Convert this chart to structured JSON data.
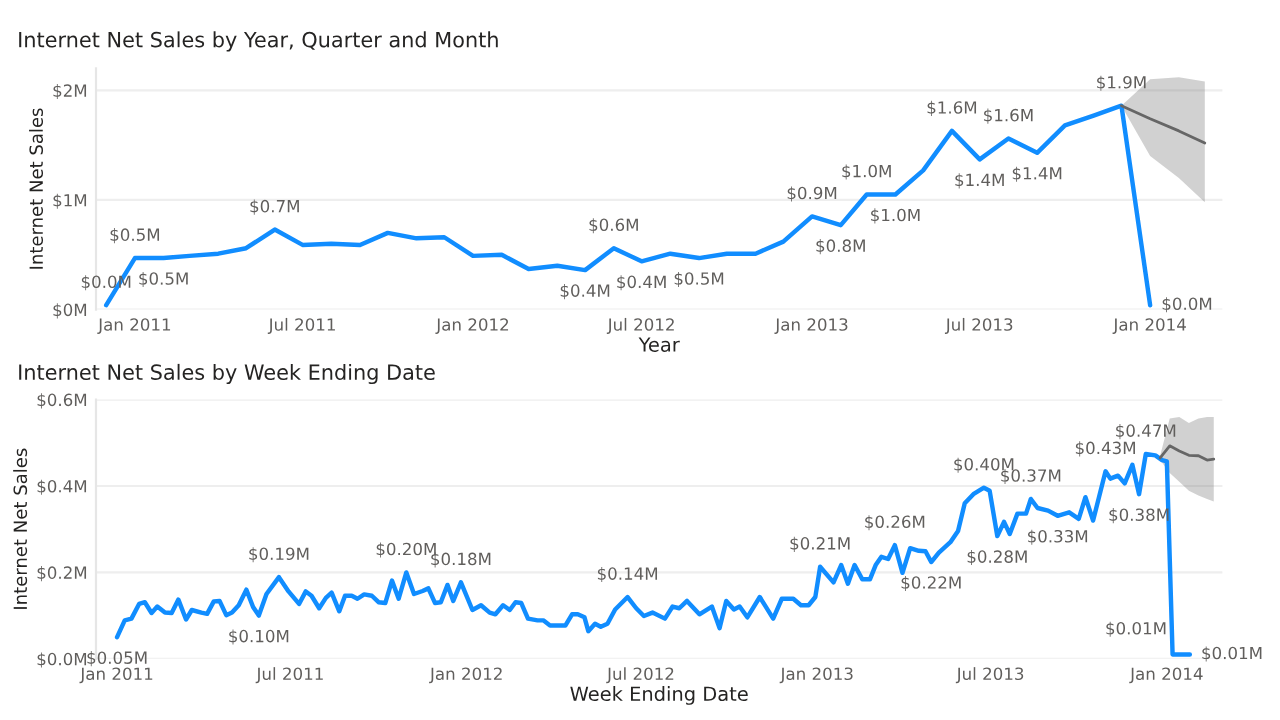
{
  "chart_data": [
    {
      "type": "line",
      "title": "Internet Net Sales by Year, Quarter and Month",
      "xlabel": "Year",
      "ylabel": "Internet Net Sales",
      "xlim": [
        "2010-11-20",
        "2014-03-20"
      ],
      "ylim": [
        0,
        2.2
      ],
      "xticks": [
        {
          "value": "2011-01-01",
          "label": "Jan 2011"
        },
        {
          "value": "2011-07-01",
          "label": "Jul 2011"
        },
        {
          "value": "2012-01-01",
          "label": "Jan 2012"
        },
        {
          "value": "2012-07-01",
          "label": "Jul 2012"
        },
        {
          "value": "2013-01-01",
          "label": "Jan 2013"
        },
        {
          "value": "2013-07-01",
          "label": "Jul 2013"
        },
        {
          "value": "2014-01-01",
          "label": "Jan 2014"
        }
      ],
      "yticks": [
        {
          "value": 0,
          "label": "$0M"
        },
        {
          "value": 1,
          "label": "$1M"
        },
        {
          "value": 2,
          "label": "$2M"
        }
      ],
      "grid": "y",
      "series": [
        {
          "color": "#118dff",
          "x": [
            "2010-12",
            "2011-01",
            "2011-02",
            "2011-03",
            "2011-04",
            "2011-05",
            "2011-06",
            "2011-07",
            "2011-08",
            "2011-09",
            "2011-10",
            "2011-11",
            "2011-12",
            "2012-01",
            "2012-02",
            "2012-03",
            "2012-04",
            "2012-05",
            "2012-06",
            "2012-07",
            "2012-08",
            "2012-09",
            "2012-10",
            "2012-11",
            "2012-12",
            "2013-01",
            "2013-02",
            "2013-03",
            "2013-04",
            "2013-05",
            "2013-06",
            "2013-07",
            "2013-08",
            "2013-09",
            "2013-10",
            "2013-11",
            "2013-12",
            "2014-01"
          ],
          "values": [
            0.04,
            0.47,
            0.47,
            0.49,
            0.51,
            0.56,
            0.73,
            0.59,
            0.6,
            0.59,
            0.7,
            0.65,
            0.66,
            0.49,
            0.5,
            0.37,
            0.4,
            0.36,
            0.56,
            0.44,
            0.51,
            0.47,
            0.51,
            0.51,
            0.62,
            0.85,
            0.77,
            1.05,
            1.05,
            1.27,
            1.63,
            1.37,
            1.56,
            1.43,
            1.68,
            1.77,
            1.86,
            0.04
          ],
          "value_labels": [
            "$0.0M",
            "$0.5M",
            "$0.5M",
            null,
            null,
            null,
            "$0.7M",
            null,
            null,
            null,
            null,
            null,
            null,
            null,
            null,
            null,
            null,
            "$0.4M",
            "$0.6M",
            "$0.4M",
            null,
            "$0.5M",
            null,
            null,
            null,
            "$0.9M",
            "$0.8M",
            "$1.0M",
            "$1.0M",
            null,
            "$1.6M",
            "$1.4M",
            "$1.6M",
            "$1.4M",
            null,
            null,
            "$1.9M",
            "$0.0M"
          ]
        },
        {
          "color": "#666666",
          "x": [
            "2013-12",
            "2014-01",
            "2014-02",
            "2014-03"
          ],
          "values": [
            1.86,
            1.74,
            1.63,
            1.52
          ],
          "lower": [
            1.86,
            1.4,
            1.2,
            0.98
          ],
          "upper": [
            1.86,
            2.1,
            2.12,
            2.08
          ]
        }
      ]
    },
    {
      "type": "line",
      "title": "Internet Net Sales by Week Ending Date",
      "xlabel": "Week Ending Date",
      "ylabel": "Internet Net Sales",
      "xlim": [
        "2010-12-10",
        "2014-02-28"
      ],
      "ylim": [
        0,
        0.6
      ],
      "xticks": [
        {
          "value": "2011-01-01",
          "label": "Jan 2011"
        },
        {
          "value": "2011-07-01",
          "label": "Jul 2011"
        },
        {
          "value": "2012-01-01",
          "label": "Jan 2012"
        },
        {
          "value": "2012-07-01",
          "label": "Jul 2012"
        },
        {
          "value": "2013-01-01",
          "label": "Jan 2013"
        },
        {
          "value": "2013-07-01",
          "label": "Jul 2013"
        },
        {
          "value": "2014-01-01",
          "label": "Jan 2014"
        }
      ],
      "yticks": [
        {
          "value": 0,
          "label": "$0.0M"
        },
        {
          "value": 0.2,
          "label": "$0.2M"
        },
        {
          "value": 0.4,
          "label": "$0.4M"
        },
        {
          "value": 0.6,
          "label": "$0.6M"
        }
      ],
      "grid": "y",
      "series": [
        {
          "color": "#118dff",
          "x": [
            "2011-01-01",
            "2011-01-09",
            "2011-01-16",
            "2011-01-24",
            "2011-01-30",
            "2011-02-06",
            "2011-02-12",
            "2011-02-20",
            "2011-02-27",
            "2011-03-06",
            "2011-03-14",
            "2011-03-20",
            "2011-03-30",
            "2011-04-05",
            "2011-04-12",
            "2011-04-18",
            "2011-04-25",
            "2011-05-01",
            "2011-05-08",
            "2011-05-16",
            "2011-05-23",
            "2011-05-29",
            "2011-06-06",
            "2011-06-19",
            "2011-06-29",
            "2011-07-10",
            "2011-07-17",
            "2011-07-23",
            "2011-07-31",
            "2011-08-07",
            "2011-08-13",
            "2011-08-21",
            "2011-08-27",
            "2011-09-03",
            "2011-09-09",
            "2011-09-16",
            "2011-09-24",
            "2011-10-01",
            "2011-10-08",
            "2011-10-15",
            "2011-10-22",
            "2011-10-30",
            "2011-11-07",
            "2011-11-16",
            "2011-11-22",
            "2011-11-29",
            "2011-12-05",
            "2011-12-12",
            "2011-12-18",
            "2011-12-26",
            "2012-01-07",
            "2012-01-16",
            "2012-01-25",
            "2012-01-31",
            "2012-02-08",
            "2012-02-15",
            "2012-02-21",
            "2012-02-27",
            "2012-03-05",
            "2012-03-15",
            "2012-03-21",
            "2012-03-28",
            "2012-04-07",
            "2012-04-13",
            "2012-04-20",
            "2012-04-26",
            "2012-05-03",
            "2012-05-07",
            "2012-05-14",
            "2012-05-20",
            "2012-05-27",
            "2012-06-04",
            "2012-06-17",
            "2012-06-26",
            "2012-07-04",
            "2012-07-13",
            "2012-07-26",
            "2012-08-03",
            "2012-08-10",
            "2012-08-18",
            "2012-08-31",
            "2012-09-13",
            "2012-09-21",
            "2012-09-28",
            "2012-10-06",
            "2012-10-12",
            "2012-10-20",
            "2012-11-02",
            "2012-11-16",
            "2012-11-25",
            "2012-12-07",
            "2012-12-15",
            "2012-12-23",
            "2012-12-30",
            "2013-01-04",
            "2013-01-18",
            "2013-01-26",
            "2013-02-02",
            "2013-02-09",
            "2013-02-17",
            "2013-02-25",
            "2013-03-03",
            "2013-03-09",
            "2013-03-16",
            "2013-03-23",
            "2013-03-31",
            "2013-04-08",
            "2013-04-17",
            "2013-04-24",
            "2013-04-30",
            "2013-05-08",
            "2013-05-20",
            "2013-05-28",
            "2013-06-04",
            "2013-06-13",
            "2013-06-24",
            "2013-06-30",
            "2013-07-08",
            "2013-07-15",
            "2013-07-21",
            "2013-07-29",
            "2013-08-07",
            "2013-08-12",
            "2013-08-19",
            "2013-08-30",
            "2013-09-09",
            "2013-09-21",
            "2013-10-01",
            "2013-10-08",
            "2013-10-16",
            "2013-10-29",
            "2013-11-03",
            "2013-11-11",
            "2013-11-18",
            "2013-11-26",
            "2013-12-03",
            "2013-12-10",
            "2013-12-20",
            "2013-12-27",
            "2014-01-01",
            "2014-01-07",
            "2014-01-25"
          ],
          "values": [
            0.05,
            0.089,
            0.093,
            0.127,
            0.131,
            0.106,
            0.121,
            0.107,
            0.106,
            0.137,
            0.091,
            0.113,
            0.107,
            0.104,
            0.133,
            0.134,
            0.101,
            0.107,
            0.124,
            0.16,
            0.12,
            0.1,
            0.15,
            0.189,
            0.156,
            0.127,
            0.156,
            0.146,
            0.117,
            0.141,
            0.153,
            0.11,
            0.146,
            0.146,
            0.139,
            0.149,
            0.146,
            0.131,
            0.129,
            0.181,
            0.139,
            0.2,
            0.15,
            0.157,
            0.163,
            0.129,
            0.131,
            0.171,
            0.134,
            0.177,
            0.113,
            0.124,
            0.107,
            0.103,
            0.124,
            0.113,
            0.131,
            0.129,
            0.093,
            0.089,
            0.089,
            0.077,
            0.077,
            0.077,
            0.103,
            0.103,
            0.096,
            0.064,
            0.081,
            0.074,
            0.081,
            0.114,
            0.143,
            0.117,
            0.099,
            0.107,
            0.093,
            0.121,
            0.117,
            0.134,
            0.103,
            0.121,
            0.071,
            0.134,
            0.114,
            0.121,
            0.096,
            0.143,
            0.093,
            0.139,
            0.139,
            0.124,
            0.124,
            0.143,
            0.213,
            0.177,
            0.217,
            0.174,
            0.217,
            0.184,
            0.184,
            0.217,
            0.236,
            0.231,
            0.263,
            0.199,
            0.256,
            0.25,
            0.249,
            0.224,
            0.246,
            0.27,
            0.296,
            0.36,
            0.381,
            0.396,
            0.389,
            0.284,
            0.317,
            0.289,
            0.336,
            0.336,
            0.37,
            0.349,
            0.343,
            0.331,
            0.339,
            0.324,
            0.374,
            0.32,
            0.434,
            0.417,
            0.424,
            0.406,
            0.449,
            0.381,
            0.474,
            0.471,
            0.46,
            0.457,
            0.01,
            0.01
          ],
          "value_labels": [
            "$0.05M",
            null,
            null,
            null,
            null,
            null,
            null,
            null,
            null,
            null,
            null,
            null,
            null,
            null,
            null,
            null,
            null,
            null,
            null,
            null,
            null,
            "$0.10M",
            null,
            "$0.19M",
            null,
            null,
            null,
            null,
            null,
            null,
            null,
            null,
            null,
            null,
            null,
            null,
            null,
            null,
            null,
            null,
            null,
            "$0.20M",
            null,
            null,
            null,
            null,
            null,
            null,
            null,
            "$0.18M",
            null,
            null,
            null,
            null,
            null,
            null,
            null,
            null,
            null,
            null,
            null,
            null,
            null,
            null,
            null,
            null,
            null,
            null,
            null,
            null,
            null,
            null,
            "$0.14M",
            null,
            null,
            null,
            null,
            null,
            null,
            null,
            null,
            null,
            null,
            null,
            null,
            null,
            null,
            null,
            null,
            null,
            null,
            null,
            null,
            null,
            "$0.21M",
            null,
            null,
            null,
            null,
            null,
            null,
            null,
            null,
            null,
            "$0.26M",
            null,
            null,
            null,
            null,
            "$0.22M",
            null,
            null,
            null,
            null,
            null,
            "$0.40M",
            null,
            "$0.28M",
            null,
            null,
            null,
            null,
            "$0.37M",
            null,
            null,
            "$0.33M",
            null,
            null,
            null,
            null,
            "$0.43M",
            null,
            null,
            null,
            null,
            "$0.38M",
            "$0.47M",
            null,
            null,
            null,
            "$0.01M",
            "$0.01M"
          ]
        },
        {
          "color": "#666666",
          "x": [
            "2013-12-25",
            "2014-01-04",
            "2014-01-14",
            "2014-01-24",
            "2014-02-03",
            "2014-02-12",
            "2014-02-19"
          ],
          "values": [
            0.465,
            0.493,
            0.481,
            0.471,
            0.47,
            0.46,
            0.462
          ],
          "lower": [
            0.46,
            0.43,
            0.41,
            0.389,
            0.378,
            0.37,
            0.364
          ],
          "upper": [
            0.47,
            0.556,
            0.56,
            0.546,
            0.556,
            0.56,
            0.56
          ]
        }
      ]
    }
  ]
}
